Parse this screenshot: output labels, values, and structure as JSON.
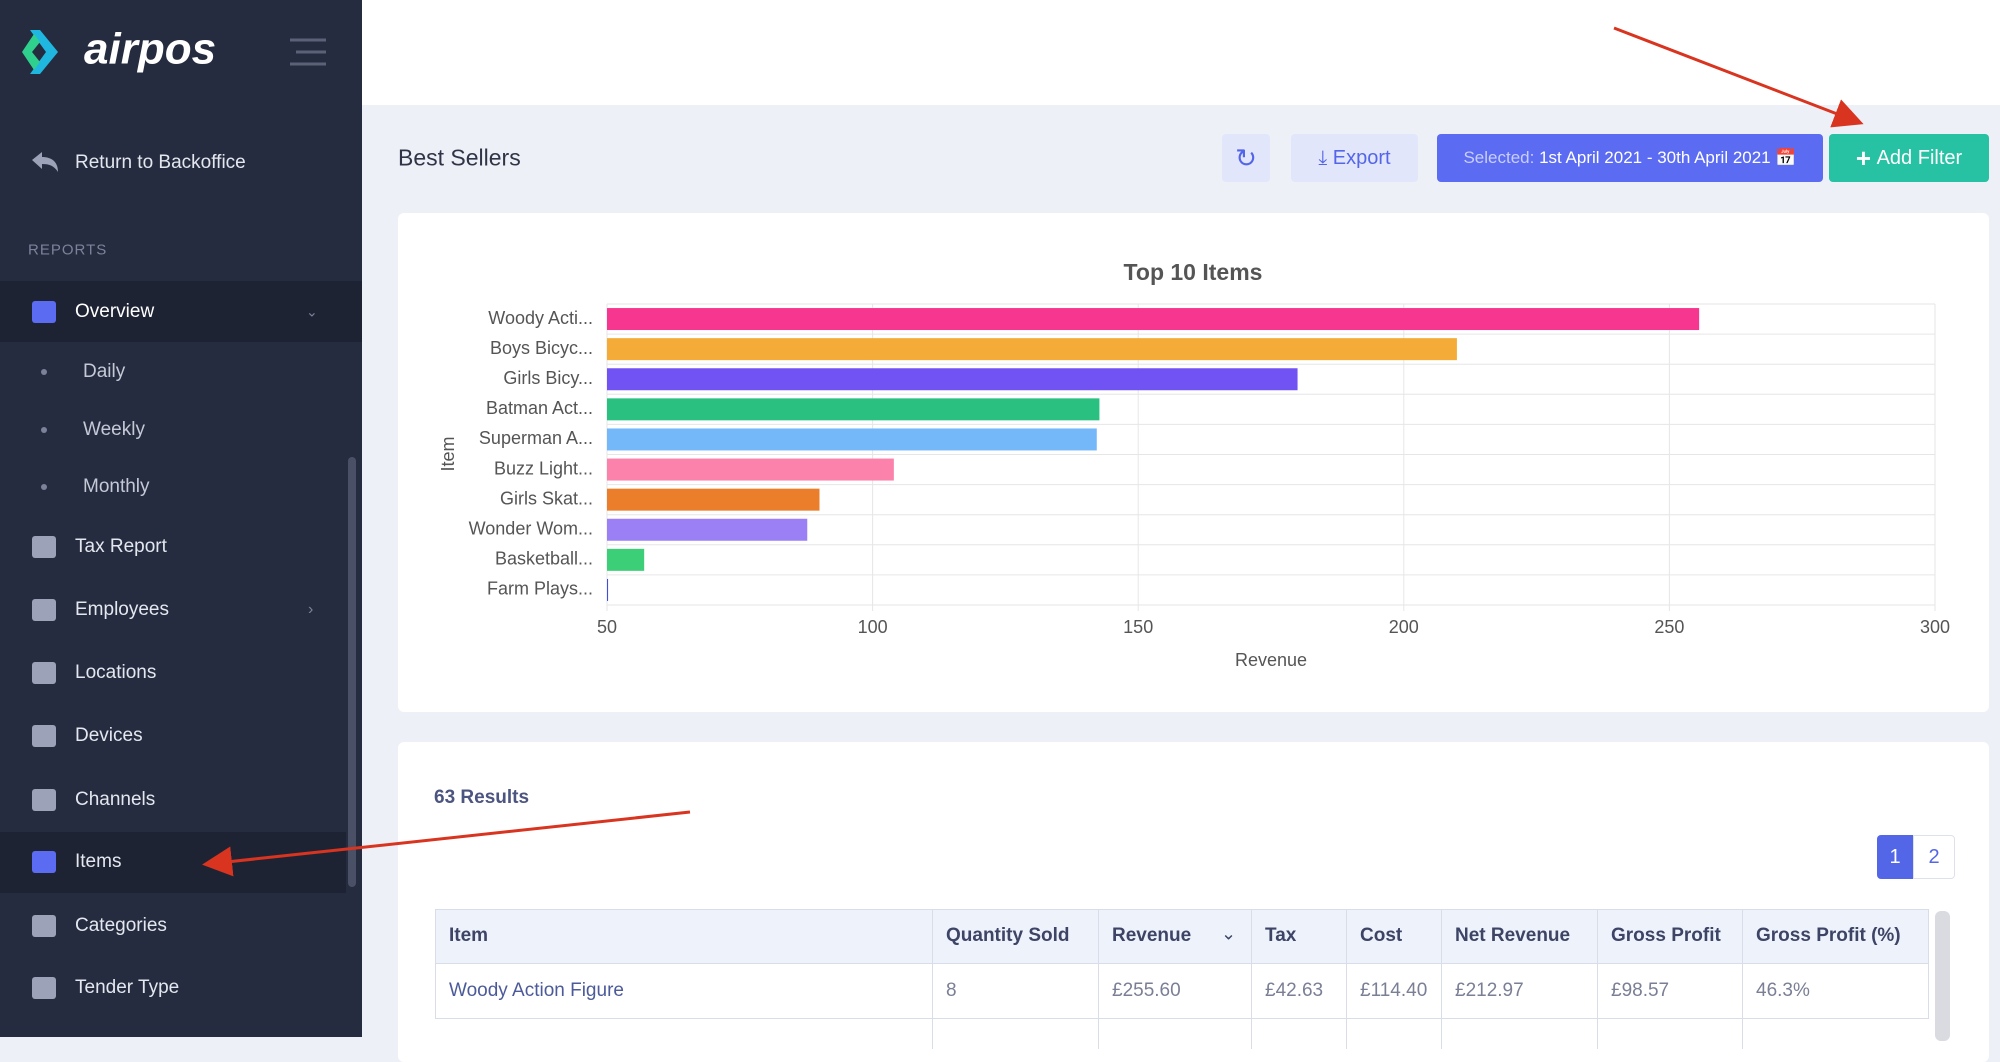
{
  "sidebar": {
    "logo": "airpos",
    "back": "Return to Backoffice",
    "section": "REPORTS",
    "overview": "Overview",
    "submenu": [
      "Daily",
      "Weekly",
      "Monthly"
    ],
    "menu": [
      "Tax Report",
      "Employees",
      "Locations",
      "Devices",
      "Channels",
      "Items",
      "Categories",
      "Tender Type"
    ]
  },
  "header": {
    "title": "Best Sellers",
    "export": "Export",
    "selected_label": "Selected:",
    "selected_range": "1st April 2021 - 30th April 2021",
    "add_filter": "Add Filter"
  },
  "chart_data": {
    "type": "barh",
    "title": "Top 10 Items",
    "x_label": "Revenue",
    "y_label": "Item",
    "categories": [
      "Woody Acti...",
      "Boys Bicyc...",
      "Girls Bicy...",
      "Batman Act...",
      "Superman A...",
      "Buzz Light...",
      "Girls Skat...",
      "Wonder Wom...",
      "Basketball...",
      "Farm Plays..."
    ],
    "values": [
      255.6,
      210,
      180,
      142.7,
      142.2,
      104,
      90,
      87.7,
      57,
      50.2
    ],
    "colors": [
      "#f7378f",
      "#f4ab38",
      "#7152f2",
      "#2ac07f",
      "#74b8fa",
      "#fc82ab",
      "#ea7e2a",
      "#9b7ff5",
      "#3ccf77",
      "#3d4fe0"
    ],
    "xlim": [
      50,
      300
    ],
    "xticks": [
      50,
      100,
      150,
      200,
      250,
      300
    ],
    "grid": true
  },
  "table": {
    "results": "63 Results",
    "pages": [
      "1",
      "2"
    ],
    "columns": [
      "Item",
      "Quantity Sold",
      "Revenue",
      "Tax",
      "Cost",
      "Net Revenue",
      "Gross Profit",
      "Gross Profit (%)"
    ],
    "rows": [
      [
        "Woody Action Figure",
        "8",
        "£255.60",
        "£42.63",
        "£114.40",
        "£212.97",
        "£98.57",
        "46.3%"
      ]
    ]
  }
}
